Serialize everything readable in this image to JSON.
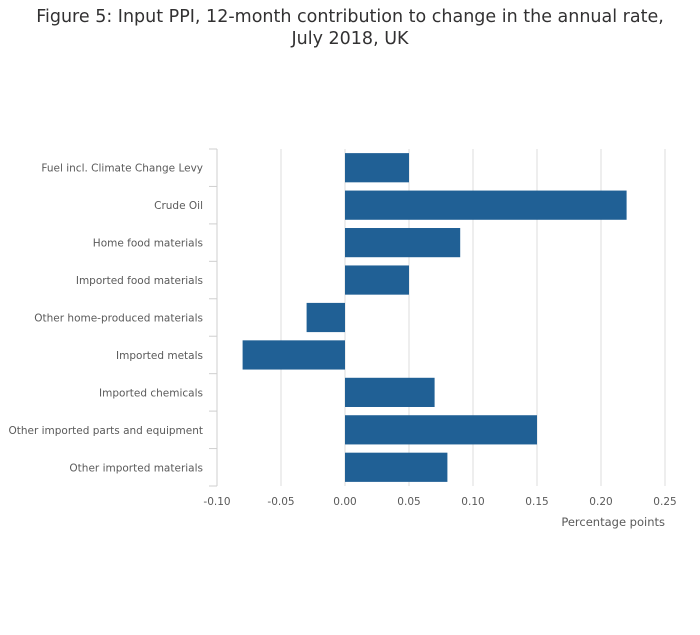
{
  "chart_data": {
    "type": "bar",
    "orientation": "horizontal",
    "title": "Figure 5: Input PPI, 12-month contribution to change in the annual rate, July 2018, UK",
    "xlabel": "Percentage points",
    "categories": [
      "Fuel incl. Climate Change Levy",
      "Crude Oil",
      "Home food materials",
      "Imported food materials",
      "Other home-produced materials",
      "Imported metals",
      "Imported chemicals",
      "Other imported parts and equipment",
      "Other imported materials"
    ],
    "values": [
      0.05,
      0.22,
      0.09,
      0.05,
      -0.03,
      -0.08,
      0.07,
      0.15,
      0.08
    ],
    "xlim": [
      -0.1,
      0.25
    ],
    "xticks": [
      "-0.10",
      "-0.05",
      "0.00",
      "0.05",
      "0.10",
      "0.15",
      "0.20",
      "0.25"
    ],
    "grid": true,
    "bar_color": "#206095",
    "grid_color": "#dddddd"
  }
}
